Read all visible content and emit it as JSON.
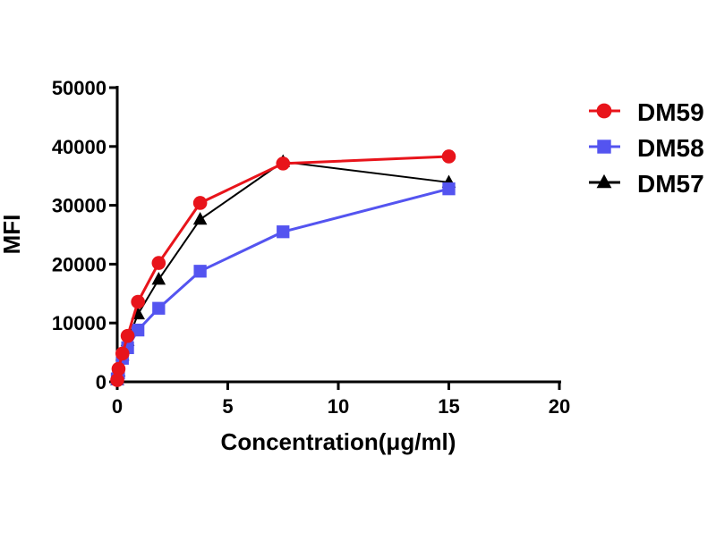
{
  "chart_data": {
    "type": "line",
    "title": "",
    "xlabel": "Concentration(μg/ml)",
    "ylabel": "MFI",
    "xlim": [
      0,
      20
    ],
    "ylim": [
      0,
      50000
    ],
    "xticks": [
      0,
      5,
      10,
      15,
      20
    ],
    "yticks": [
      0,
      10000,
      20000,
      30000,
      40000,
      50000
    ],
    "xtick_labels": [
      "0",
      "5",
      "10",
      "15",
      "20"
    ],
    "ytick_labels": [
      "0",
      "10000",
      "20000",
      "30000",
      "40000",
      "50000"
    ],
    "grid": false,
    "legend_position": "right",
    "x": [
      0,
      0.0586,
      0.234,
      0.469,
      0.9375,
      1.875,
      3.75,
      7.5,
      15
    ],
    "series": [
      {
        "name": "DM59",
        "color": "#e8141b",
        "marker": "circle",
        "values": [
          300,
          2200,
          4800,
          7800,
          13600,
          20200,
          30400,
          37100,
          38300
        ]
      },
      {
        "name": "DM58",
        "color": "#5454f0",
        "marker": "square",
        "values": [
          500,
          1500,
          4000,
          5800,
          8800,
          12500,
          18800,
          25500,
          32800
        ]
      },
      {
        "name": "DM57",
        "color": "#000000",
        "marker": "triangle",
        "values": [
          300,
          1800,
          4500,
          7000,
          11500,
          17400,
          27600,
          37400,
          33900
        ]
      }
    ]
  }
}
